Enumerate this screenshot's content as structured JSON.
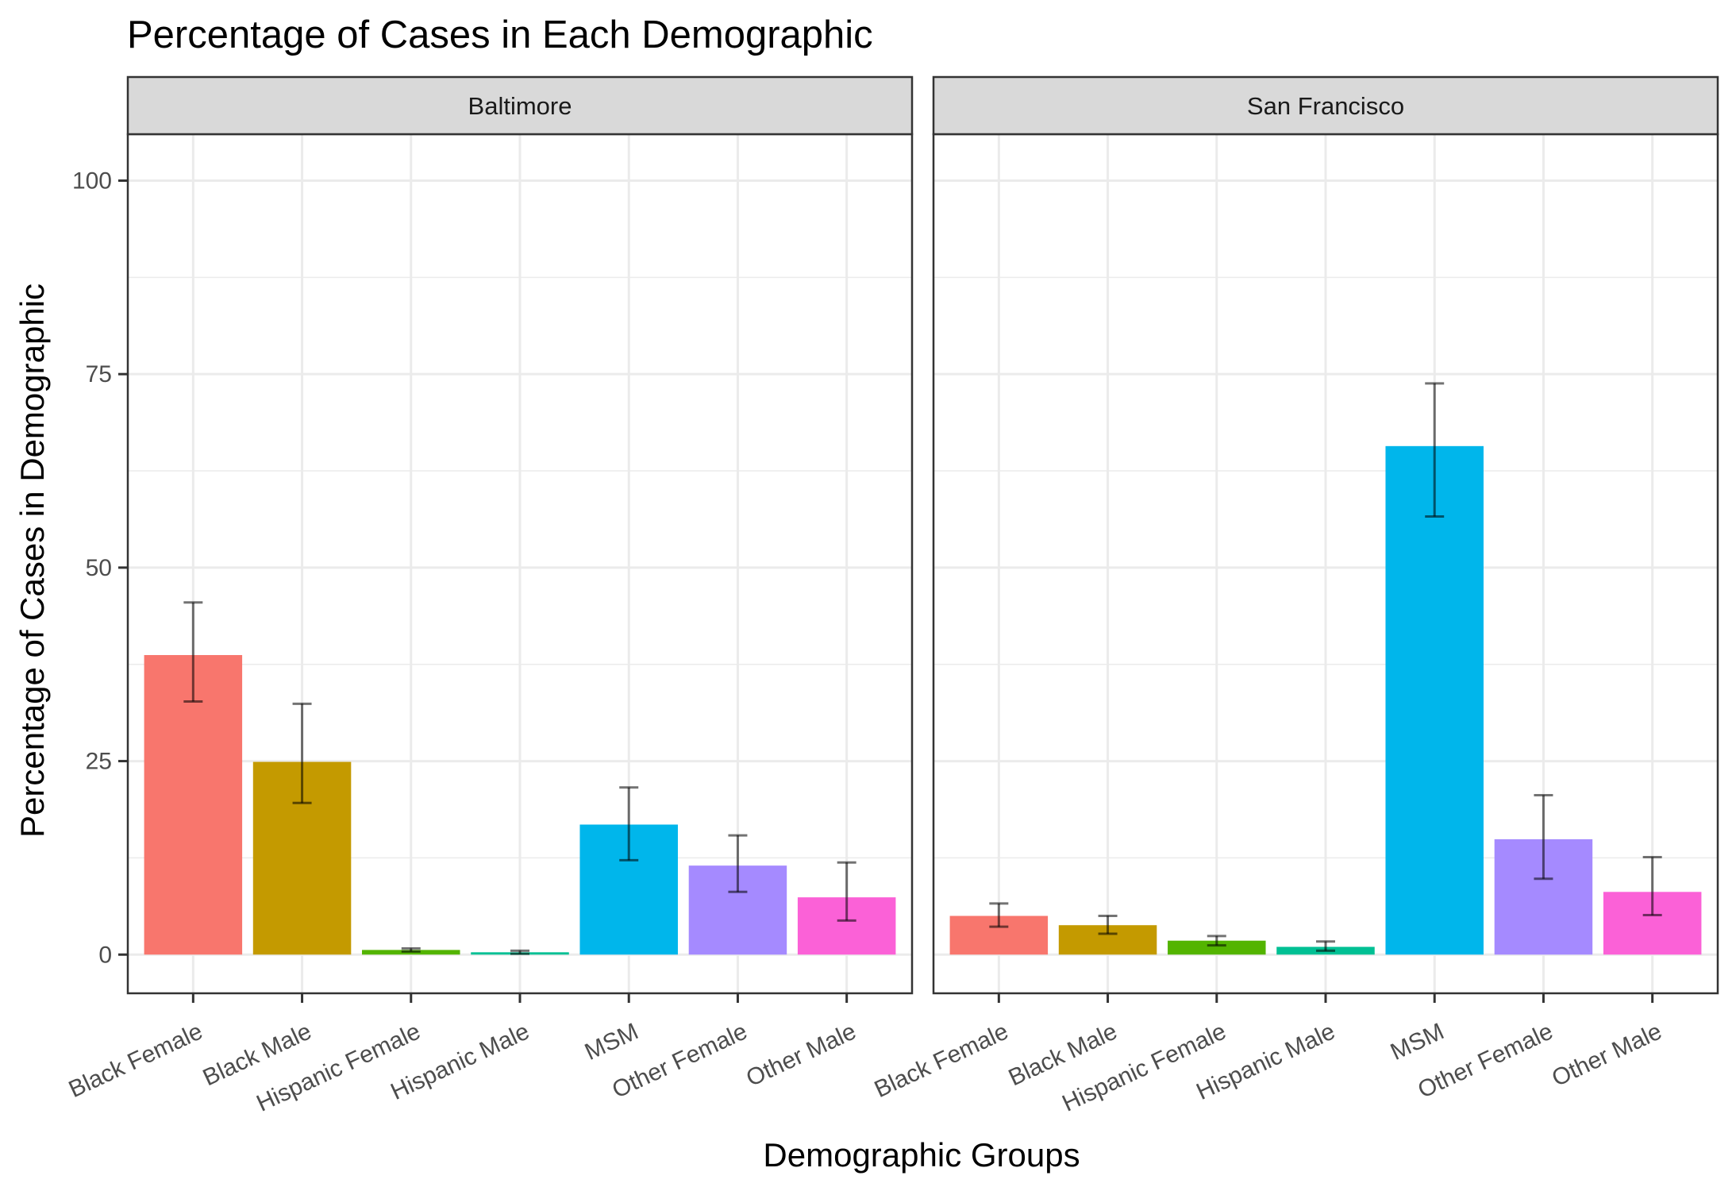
{
  "chart_data": {
    "type": "bar",
    "title": "Percentage of Cases in Each Demographic",
    "xlabel": "Demographic Groups",
    "ylabel": "Percentage of Cases in Demographic",
    "ylim": [
      -5,
      106
    ],
    "yticks": [
      0,
      25,
      50,
      75,
      100
    ],
    "grid": true,
    "legend": "none",
    "categories": [
      "Black Female",
      "Black Male",
      "Hispanic Female",
      "Hispanic Male",
      "MSM",
      "Other Female",
      "Other Male"
    ],
    "colors": [
      "#F8766D",
      "#C49A00",
      "#53B400",
      "#00C094",
      "#00B6EB",
      "#A58AFF",
      "#FB61D7"
    ],
    "panels": [
      {
        "name": "Baltimore",
        "values": [
          38.7,
          24.9,
          0.6,
          0.3,
          16.8,
          11.5,
          7.4
        ],
        "error_low": [
          32.7,
          19.6,
          0.4,
          0.1,
          12.2,
          8.1,
          4.4
        ],
        "error_high": [
          45.5,
          32.4,
          0.8,
          0.5,
          21.6,
          15.4,
          11.9
        ]
      },
      {
        "name": "San Francisco",
        "values": [
          5.0,
          3.8,
          1.8,
          1.0,
          65.7,
          14.9,
          8.1
        ],
        "error_low": [
          3.6,
          2.7,
          1.2,
          0.5,
          56.6,
          9.8,
          5.1
        ],
        "error_high": [
          6.6,
          5.0,
          2.4,
          1.7,
          73.8,
          20.6,
          12.6
        ]
      }
    ]
  }
}
